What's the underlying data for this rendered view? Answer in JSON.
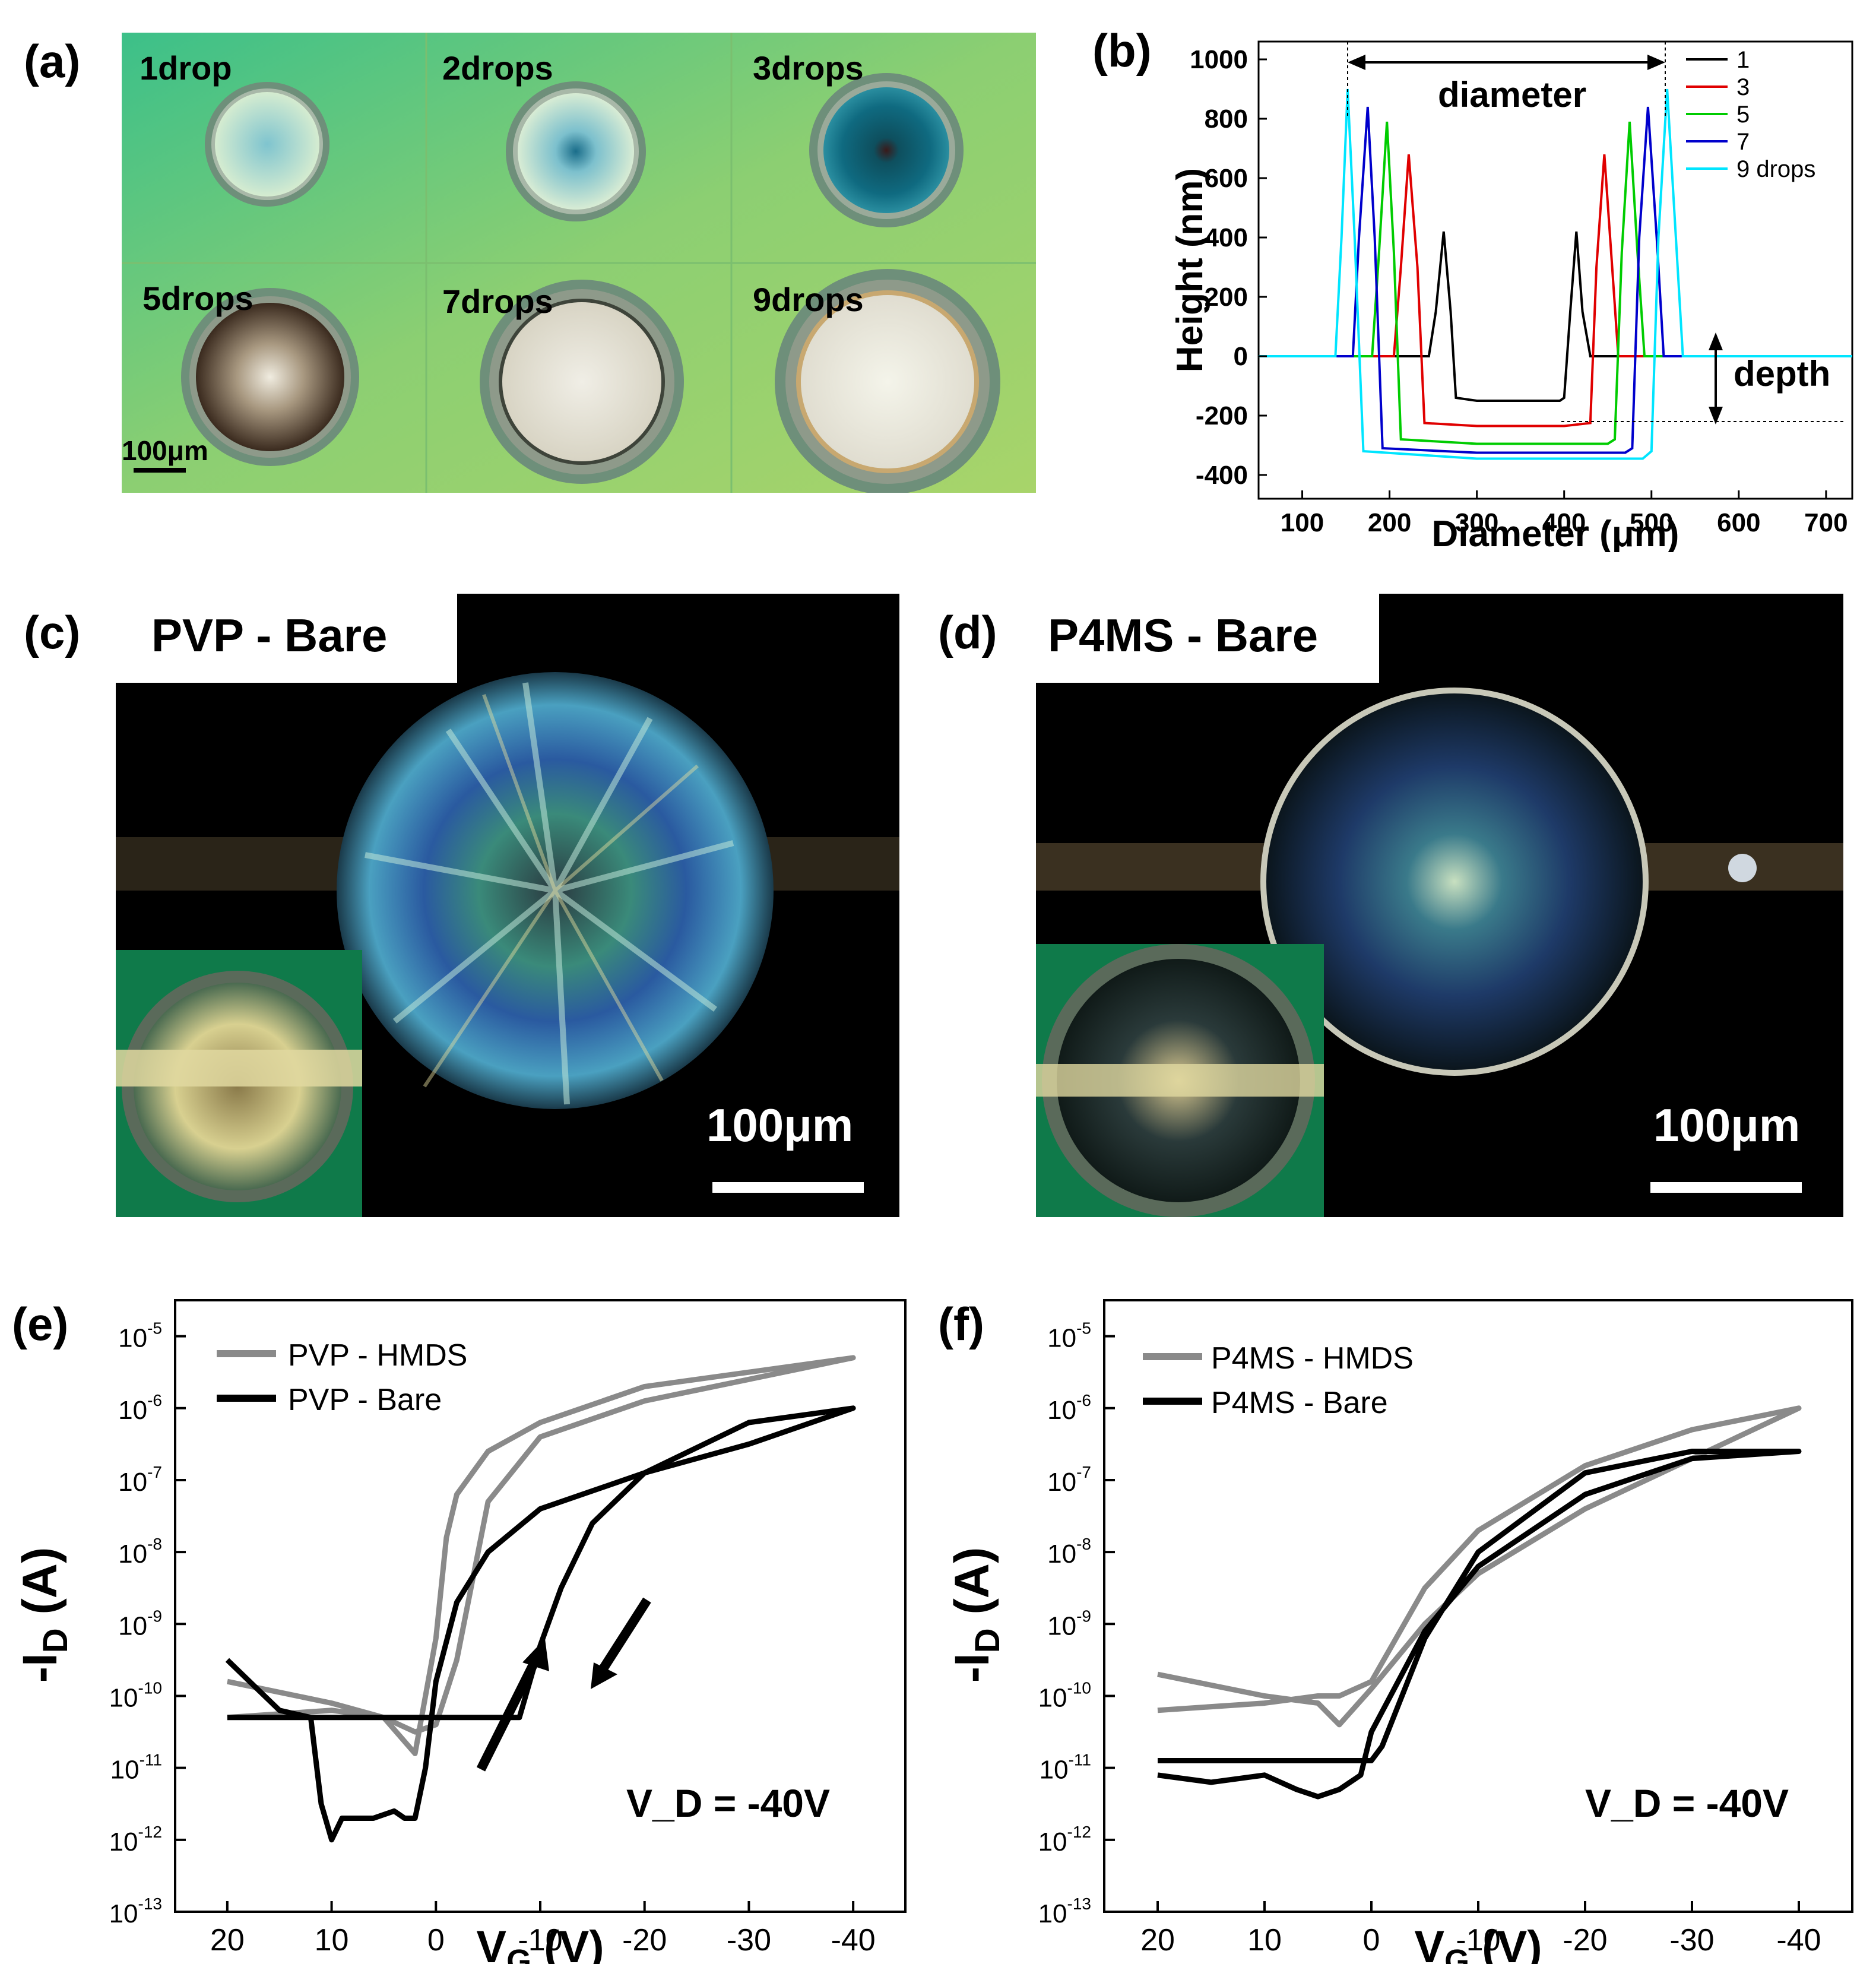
{
  "panels": {
    "a": {
      "label": "(a)",
      "drops": [
        "1drop",
        "2drops",
        "3drops",
        "5drops",
        "7drops",
        "9drops"
      ],
      "scalebar": "100μm"
    },
    "b": {
      "label": "(b)",
      "diameter_label": "diameter",
      "depth_label": "depth"
    },
    "c": {
      "label": "(c)",
      "title": "PVP - Bare",
      "scalebar": "100μm"
    },
    "d": {
      "label": "(d)",
      "title": "P4MS - Bare",
      "scalebar": "100μm"
    },
    "e": {
      "label": "(e)",
      "annotation": "V_D = -40V"
    },
    "f": {
      "label": "(f)",
      "annotation": "V_D = -40V"
    }
  },
  "colors": {
    "c1": "#000000",
    "c3": "#e00000",
    "c5": "#00cc00",
    "c7": "#0000cc",
    "c9": "#00e5ff",
    "hmds": "#8a8a8a",
    "bare": "#000000"
  },
  "chart_data": [
    {
      "id": "b",
      "type": "line",
      "xlabel": "Diameter (μm)",
      "ylabel": "Height (nm)",
      "xlim": [
        50,
        730
      ],
      "ylim": [
        -480,
        1060
      ],
      "xticks": [
        100,
        200,
        300,
        400,
        500,
        600,
        700
      ],
      "yticks": [
        -400,
        -200,
        0,
        200,
        400,
        600,
        800,
        1000
      ],
      "legend_position": "top-right",
      "series": [
        {
          "name": "1",
          "color": "#000000",
          "x": [
            50,
            245,
            253,
            262,
            270,
            276,
            300,
            350,
            395,
            400,
            407,
            414,
            421,
            430,
            730
          ],
          "y": [
            0,
            0,
            150,
            420,
            150,
            -140,
            -150,
            -150,
            -150,
            -140,
            150,
            420,
            150,
            0,
            0
          ]
        },
        {
          "name": "3",
          "color": "#e00000",
          "x": [
            50,
            205,
            213,
            222,
            232,
            240,
            300,
            400,
            430,
            437,
            446,
            455,
            462,
            730
          ],
          "y": [
            0,
            0,
            300,
            680,
            300,
            -225,
            -235,
            -235,
            -225,
            300,
            680,
            300,
            0,
            0
          ]
        },
        {
          "name": "5",
          "color": "#00cc00",
          "x": [
            50,
            180,
            188,
            197,
            205,
            213,
            300,
            450,
            458,
            466,
            475,
            484,
            492,
            730
          ],
          "y": [
            0,
            0,
            350,
            790,
            350,
            -280,
            -295,
            -295,
            -280,
            350,
            790,
            350,
            0,
            0
          ]
        },
        {
          "name": "7",
          "color": "#0000cc",
          "x": [
            50,
            158,
            165,
            175,
            183,
            192,
            300,
            470,
            478,
            486,
            496,
            506,
            514,
            730
          ],
          "y": [
            0,
            0,
            400,
            840,
            400,
            -310,
            -325,
            -325,
            -310,
            400,
            840,
            400,
            0,
            0
          ]
        },
        {
          "name": "9 drops",
          "color": "#00e5ff",
          "x": [
            50,
            138,
            145,
            152,
            160,
            170,
            300,
            490,
            500,
            508,
            518,
            528,
            536,
            730
          ],
          "y": [
            0,
            0,
            400,
            900,
            400,
            -320,
            -345,
            -345,
            -320,
            400,
            900,
            400,
            0,
            0
          ]
        }
      ]
    },
    {
      "id": "e",
      "type": "line",
      "xlabel": "V_G (V)",
      "ylabel": "-I_D (A)",
      "xlim": [
        25,
        -45
      ],
      "ylim_log10": [
        -13,
        -4.5
      ],
      "xticks": [
        20,
        10,
        0,
        -10,
        -20,
        -30,
        -40
      ],
      "yticks_log10": [
        -13,
        -12,
        -11,
        -10,
        -9,
        -8,
        -7,
        -6,
        -5
      ],
      "legend_position": "top-left",
      "series": [
        {
          "name": "PVP - HMDS",
          "color": "#8a8a8a",
          "x": [
            20,
            10,
            5,
            2,
            0,
            -2,
            -5,
            -10,
            -20,
            -30,
            -40,
            -30,
            -20,
            -10,
            -5,
            -2,
            -1,
            0,
            2,
            5,
            10,
            20
          ],
          "logy": [
            -9.8,
            -10.1,
            -10.3,
            -10.5,
            -10.4,
            -9.5,
            -7.3,
            -6.4,
            -5.9,
            -5.6,
            -5.3,
            -5.5,
            -5.7,
            -6.2,
            -6.6,
            -7.2,
            -7.8,
            -9.2,
            -10.8,
            -10.3,
            -10.2,
            -10.3
          ]
        },
        {
          "name": "PVP - Bare",
          "color": "#000000",
          "x": [
            20,
            15,
            12,
            11,
            10,
            9,
            8,
            6,
            4,
            3,
            2,
            1,
            0,
            -2,
            -5,
            -10,
            -20,
            -30,
            -40,
            -30,
            -20,
            -15,
            -12,
            -10,
            -8,
            0,
            10,
            20
          ],
          "logy": [
            -9.5,
            -10.2,
            -10.3,
            -11.5,
            -12.0,
            -11.7,
            -11.7,
            -11.7,
            -11.6,
            -11.7,
            -11.7,
            -11.0,
            -9.8,
            -8.7,
            -8.0,
            -7.4,
            -6.9,
            -6.5,
            -6.0,
            -6.2,
            -6.9,
            -7.6,
            -8.5,
            -9.3,
            -10.3,
            -10.3,
            -10.3,
            -10.3
          ]
        },
        {
          "name": "P4MS - HMDS",
          "color": "#8a8a8a",
          "x": [
            20,
            10,
            5,
            3,
            0,
            -5,
            -10,
            -20,
            -30,
            -40,
            -30,
            -20,
            -10,
            -5,
            0,
            3,
            5,
            10,
            20
          ],
          "logy": [
            -9.7,
            -10.0,
            -10.1,
            -10.4,
            -9.9,
            -9.0,
            -8.3,
            -7.4,
            -6.7,
            -6.0,
            -6.3,
            -6.8,
            -7.7,
            -8.5,
            -9.8,
            -10.0,
            -10.0,
            -10.1,
            -10.2
          ]
        },
        {
          "name": "P4MS - Bare",
          "color": "#000000",
          "x": [
            20,
            15,
            10,
            7,
            5,
            3,
            1,
            0,
            -5,
            -10,
            -20,
            -30,
            -40,
            -30,
            -20,
            -10,
            -5,
            -1,
            0,
            10,
            20
          ],
          "logy": [
            -11.1,
            -11.2,
            -11.1,
            -11.3,
            -11.4,
            -11.3,
            -11.1,
            -10.5,
            -9.1,
            -8.2,
            -7.2,
            -6.7,
            -6.6,
            -6.6,
            -6.9,
            -8.0,
            -9.2,
            -10.7,
            -10.9,
            -10.9,
            -10.9
          ]
        }
      ]
    }
  ],
  "legend_e": [
    "PVP - HMDS",
    "PVP - Bare"
  ],
  "legend_f": [
    "P4MS - HMDS",
    "P4MS - Bare"
  ]
}
